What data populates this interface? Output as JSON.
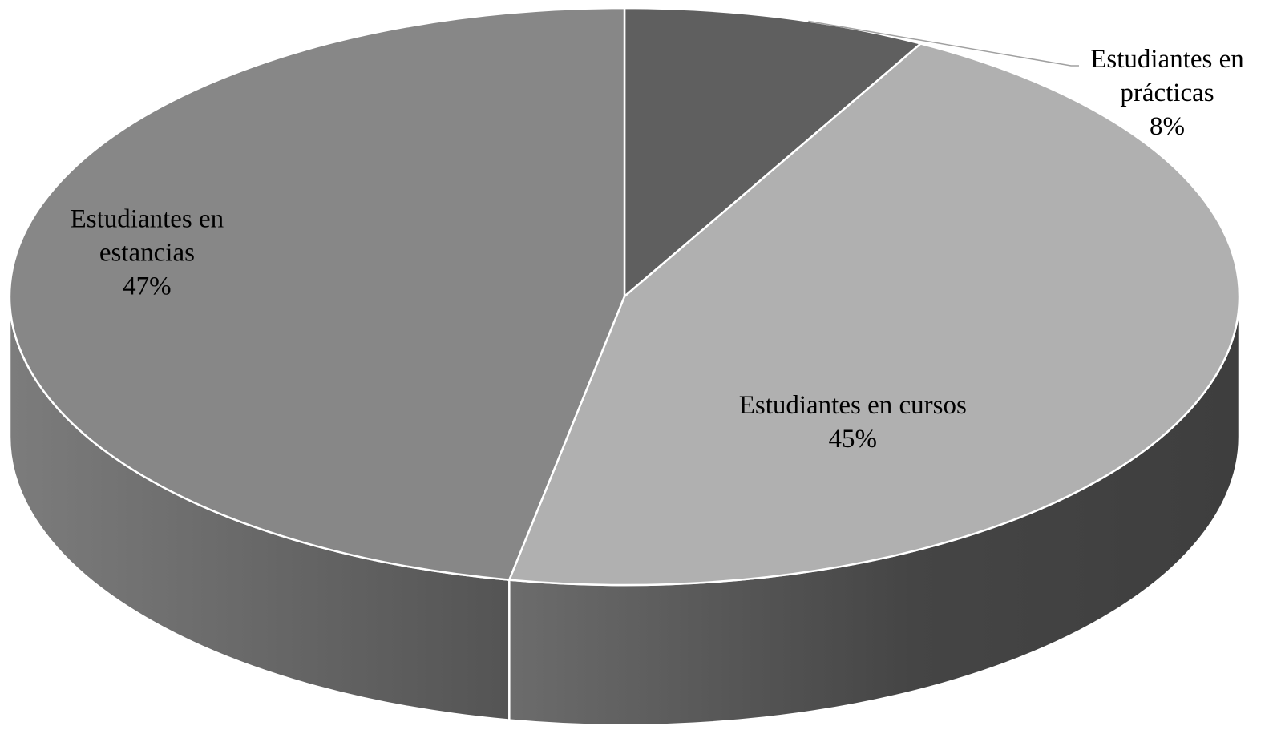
{
  "chart_data": {
    "type": "pie",
    "style": "3d",
    "title": "",
    "series": [
      {
        "values": [
          {
            "label_lines": [
              "Estudiantes en",
              "prácticas"
            ],
            "percent_label": "8%",
            "value": 8,
            "color": "#5f5f5f",
            "side_color": "#3a3a3a"
          },
          {
            "label_lines": [
              "Estudiantes en cursos"
            ],
            "percent_label": "45%",
            "value": 45,
            "color": "#b0b0b0",
            "side_color": "#484848"
          },
          {
            "label_lines": [
              "Estudiantes en",
              "estancias"
            ],
            "percent_label": "47%",
            "value": 47,
            "color": "#878787",
            "side_color": "#5e5e5e"
          }
        ]
      }
    ],
    "legend": "none",
    "label_placement": [
      "outside-with-leader",
      "inside",
      "inside"
    ]
  }
}
